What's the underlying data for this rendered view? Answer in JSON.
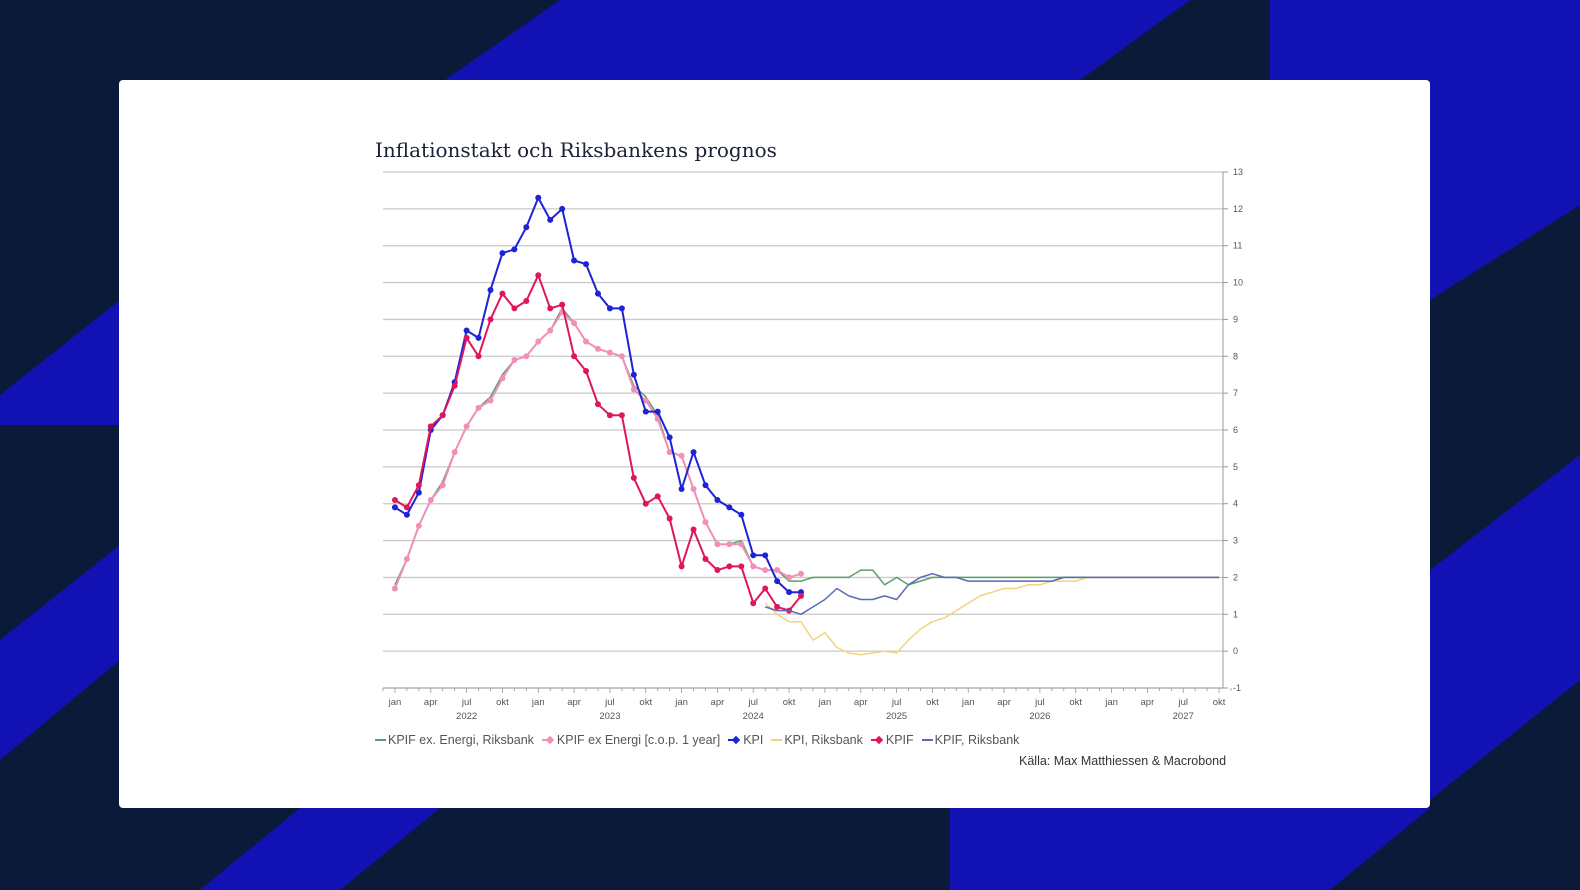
{
  "chart_data": {
    "type": "line",
    "title": "Inflationstakt och Riksbankens prognos",
    "source": "Källa: Max Matthiessen & Macrobond",
    "ylim": [
      -1,
      13
    ],
    "yticks": [
      "-1",
      "0",
      "1",
      "2",
      "3",
      "4",
      "5",
      "6",
      "7",
      "8",
      "9",
      "10",
      "11",
      "12",
      "13"
    ],
    "xlim": [
      "2021-12",
      "2027-11"
    ],
    "month_labels": [
      "jan",
      "apr",
      "jul",
      "okt"
    ],
    "year_labels": [
      "2022",
      "2023",
      "2024",
      "2025",
      "2026",
      "2027"
    ],
    "grid": true,
    "legend_position": "bottom",
    "series": [
      {
        "name": "KPIF ex. Energi, Riksbank",
        "color": "#5aa06a",
        "marker": "none",
        "start": "2022-01",
        "values": [
          1.8,
          2.5,
          3.4,
          4.1,
          4.6,
          5.4,
          6.1,
          6.6,
          6.9,
          7.5,
          7.9,
          8.0,
          8.4,
          8.7,
          9.3,
          8.9,
          8.4,
          8.2,
          8.1,
          8.0,
          7.2,
          6.9,
          6.4,
          5.4,
          5.3,
          4.4,
          3.5,
          2.9,
          2.9,
          3.0,
          2.3,
          2.2,
          2.2,
          1.9,
          1.9,
          2.0,
          2.0,
          2.0,
          2.0,
          2.2,
          2.2,
          1.8,
          2.0,
          1.8,
          1.9,
          2.0,
          2.0,
          2.0,
          2.0,
          2.0,
          2.0,
          2.0,
          2.0,
          2.0,
          2.0,
          2.0,
          2.0,
          2.0,
          2.0,
          2.0,
          2.0,
          2.0,
          2.0,
          2.0,
          2.0,
          2.0,
          2.0,
          2.0,
          2.0,
          2.0
        ]
      },
      {
        "name": "KPIF ex Energi [c.o.p. 1 year]",
        "color": "#f28fb8",
        "marker": "dot",
        "start": "2022-01",
        "values": [
          1.7,
          2.5,
          3.4,
          4.1,
          4.5,
          5.4,
          6.1,
          6.6,
          6.8,
          7.4,
          7.9,
          8.0,
          8.4,
          8.7,
          9.2,
          8.9,
          8.4,
          8.2,
          8.1,
          8.0,
          7.1,
          6.8,
          6.3,
          5.4,
          5.3,
          4.4,
          3.5,
          2.9,
          2.9,
          2.9,
          2.3,
          2.2,
          2.2,
          2.0,
          2.1
        ]
      },
      {
        "name": "KPI",
        "color": "#1d23d6",
        "marker": "dot",
        "start": "2022-01",
        "values": [
          3.9,
          3.7,
          4.3,
          6.0,
          6.4,
          7.3,
          8.7,
          8.5,
          9.8,
          10.8,
          10.9,
          11.5,
          12.3,
          11.7,
          12.0,
          10.6,
          10.5,
          9.7,
          9.3,
          9.3,
          7.5,
          6.5,
          6.5,
          5.8,
          4.4,
          5.4,
          4.5,
          4.1,
          3.9,
          3.7,
          2.6,
          2.6,
          1.9,
          1.6,
          1.6
        ]
      },
      {
        "name": "KPI, Riksbank",
        "color": "#f6d27a",
        "marker": "none",
        "start": "2024-08",
        "values": [
          1.3,
          1.0,
          0.8,
          0.8,
          0.3,
          0.5,
          0.1,
          -0.05,
          -0.1,
          -0.05,
          0.0,
          -0.05,
          0.3,
          0.6,
          0.8,
          0.9,
          1.1,
          1.3,
          1.5,
          1.6,
          1.7,
          1.7,
          1.8,
          1.8,
          1.9,
          1.9,
          1.9,
          2.0,
          2.0,
          2.0,
          2.0,
          2.0,
          2.0,
          2.0,
          2.0,
          2.0,
          2.0,
          2.0,
          2.0
        ]
      },
      {
        "name": "KPIF",
        "color": "#e0155b",
        "marker": "dot",
        "start": "2022-01",
        "values": [
          4.1,
          3.9,
          4.5,
          6.1,
          6.4,
          7.2,
          8.5,
          8.0,
          9.0,
          9.7,
          9.3,
          9.5,
          10.2,
          9.3,
          9.4,
          8.0,
          7.6,
          6.7,
          6.4,
          6.4,
          4.7,
          4.0,
          4.2,
          3.6,
          2.3,
          3.3,
          2.5,
          2.2,
          2.3,
          2.3,
          1.3,
          1.7,
          1.2,
          1.1,
          1.5
        ]
      },
      {
        "name": "KPIF, Riksbank",
        "color": "#5a6ab8",
        "marker": "none",
        "start": "2024-08",
        "values": [
          1.2,
          1.1,
          1.1,
          1.0,
          1.2,
          1.4,
          1.7,
          1.5,
          1.4,
          1.4,
          1.5,
          1.4,
          1.8,
          2.0,
          2.1,
          2.0,
          2.0,
          1.9,
          1.9,
          1.9,
          1.9,
          1.9,
          1.9,
          1.9,
          1.9,
          2.0,
          2.0,
          2.0,
          2.0,
          2.0,
          2.0,
          2.0,
          2.0,
          2.0,
          2.0,
          2.0,
          2.0,
          2.0,
          2.0
        ]
      }
    ]
  }
}
